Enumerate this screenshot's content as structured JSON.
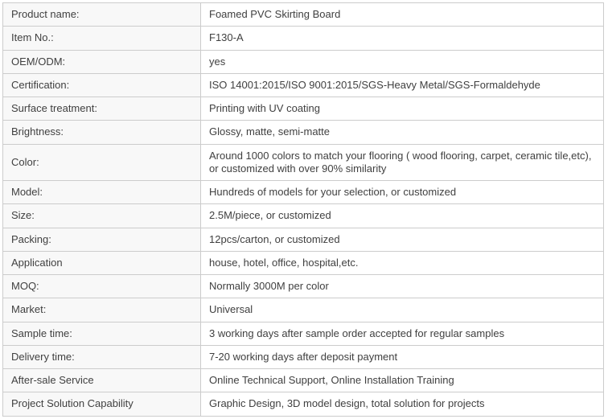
{
  "table": {
    "name": "product-specification-table",
    "columns": [
      "attribute",
      "value"
    ],
    "colors": {
      "border": "#cccccc",
      "label_background": "#f8f8f8",
      "value_background": "#ffffff",
      "text": "#404040"
    },
    "rows": [
      {
        "label": "Product name:",
        "value": "Foamed PVC Skirting Board"
      },
      {
        "label": "Item No.:",
        "value": "F130-A"
      },
      {
        "label": "OEM/ODM:",
        "value": "yes"
      },
      {
        "label": "Certification:",
        "value": "ISO 14001:2015/ISO 9001:2015/SGS-Heavy Metal/SGS-Formaldehyde"
      },
      {
        "label": "Surface treatment:",
        "value": "Printing with UV coating"
      },
      {
        "label": "Brightness:",
        "value": "Glossy, matte, semi-matte"
      },
      {
        "label": "Color:",
        "value": "Around 1000 colors to match your flooring ( wood flooring, carpet, ceramic tile,etc), or customized with over 90% similarity"
      },
      {
        "label": "Model:",
        "value": "Hundreds of models for your selection, or customized"
      },
      {
        "label": "Size:",
        "value": "2.5M/piece, or customized"
      },
      {
        "label": "Packing:",
        "value": "12pcs/carton, or customized"
      },
      {
        "label": "Application",
        "value": "house, hotel, office, hospital,etc."
      },
      {
        "label": "MOQ:",
        "value": "Normally 3000M per color"
      },
      {
        "label": "Market:",
        "value": "Universal"
      },
      {
        "label": "Sample time:",
        "value": "3 working days after sample order accepted for regular samples"
      },
      {
        "label": "Delivery time:",
        "value": "7-20 working days after deposit payment"
      },
      {
        "label": "After-sale Service",
        "value": "Online Technical Support, Online Installation Training"
      },
      {
        "label": "Project Solution Capability",
        "value": "Graphic Design, 3D model design, total solution for projects"
      }
    ]
  }
}
